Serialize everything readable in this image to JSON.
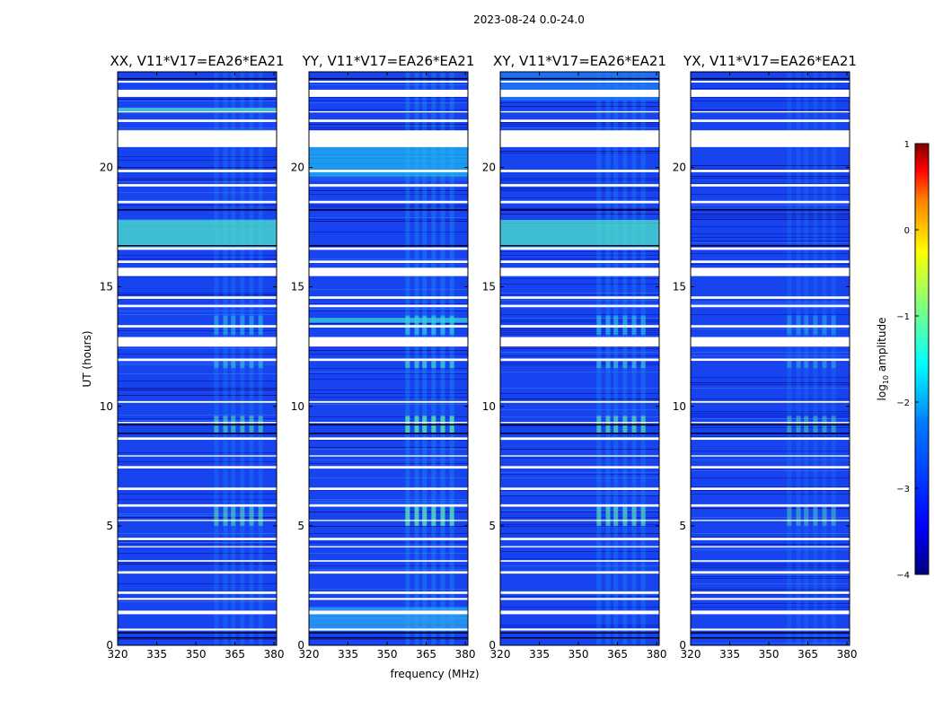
{
  "figure": {
    "suptitle": "2023-08-24 0.0-24.0"
  },
  "colors": {
    "cmap": [
      "#00007f",
      "#0000ff",
      "#007fff",
      "#00ffff",
      "#7fff7f",
      "#ffff00",
      "#ff7f00",
      "#ff0000",
      "#7f0000"
    ],
    "background_level": "#1744ef",
    "flag": "#ffffff",
    "spike": "#00002a"
  },
  "chart_data": {
    "type": "heatmap",
    "description_of_axes": "dynamic spectrum",
    "xlabel": "frequency (MHz)",
    "ylabel": "UT (hours)",
    "xlim": [
      320,
      381
    ],
    "ylim": [
      0,
      24
    ],
    "xticks": [
      320,
      335,
      350,
      365,
      380
    ],
    "yticks": [
      0,
      5,
      10,
      15,
      20
    ],
    "rfi_band_mhz": [
      357,
      378
    ],
    "panels": [
      {
        "title": "XX, V11*V17=EA26*EA21",
        "rfi_strength": 0.7,
        "bright_rows": [
          [
            16.6,
            17.8,
            "#4de6c8"
          ],
          [
            22.3,
            22.5,
            "#52e0d0"
          ]
        ]
      },
      {
        "title": "YY, V11*V17=EA26*EA21",
        "rfi_strength": 1.0,
        "bright_rows": [
          [
            19.6,
            21.0,
            "#22b6f0"
          ],
          [
            0.6,
            1.6,
            "#2da8f3"
          ],
          [
            13.5,
            13.7,
            "#39d4d8"
          ]
        ]
      },
      {
        "title": "XY, V11*V17=EA26*EA21",
        "rfi_strength": 0.85,
        "bright_rows": [
          [
            16.6,
            17.8,
            "#4de6c8"
          ],
          [
            22.8,
            24.0,
            "#1f7df5"
          ]
        ]
      },
      {
        "title": "YX, V11*V17=EA26*EA21",
        "rfi_strength": 0.55,
        "bright_rows": []
      }
    ],
    "flagged_hours": [
      [
        20.85,
        21.55
      ],
      [
        22.95,
        23.25
      ],
      [
        15.45,
        15.8
      ],
      [
        12.5,
        12.9
      ],
      [
        1.3,
        1.45
      ],
      [
        0.62,
        0.7
      ],
      [
        2.15,
        2.25
      ],
      [
        3.0,
        3.1
      ],
      [
        4.4,
        4.5
      ],
      [
        5.8,
        5.9
      ],
      [
        6.5,
        6.6
      ],
      [
        7.4,
        7.5
      ],
      [
        8.6,
        8.7
      ],
      [
        10.15,
        10.22
      ],
      [
        11.9,
        12.0
      ],
      [
        13.3,
        13.4
      ],
      [
        14.15,
        14.25
      ],
      [
        14.5,
        14.6
      ],
      [
        16.0,
        16.1
      ],
      [
        16.55,
        16.65
      ],
      [
        18.5,
        18.6
      ],
      [
        19.2,
        19.3
      ],
      [
        19.8,
        19.9
      ],
      [
        21.9,
        22.0
      ],
      [
        22.3,
        22.35
      ],
      [
        23.55,
        23.62
      ],
      [
        1.9,
        1.98
      ],
      [
        3.5,
        3.56
      ],
      [
        9.3,
        9.35
      ],
      [
        4.1,
        4.15
      ],
      [
        5.2,
        5.25
      ],
      [
        7.9,
        7.95
      ]
    ],
    "colorbar": {
      "label": "log10 amplitude",
      "label_prefix": "log",
      "label_subscript": "10",
      "label_suffix": " amplitude",
      "range": [
        -4,
        1
      ],
      "ticks": [
        "1",
        "0",
        "−1",
        "−2",
        "−3",
        "−4"
      ]
    }
  }
}
